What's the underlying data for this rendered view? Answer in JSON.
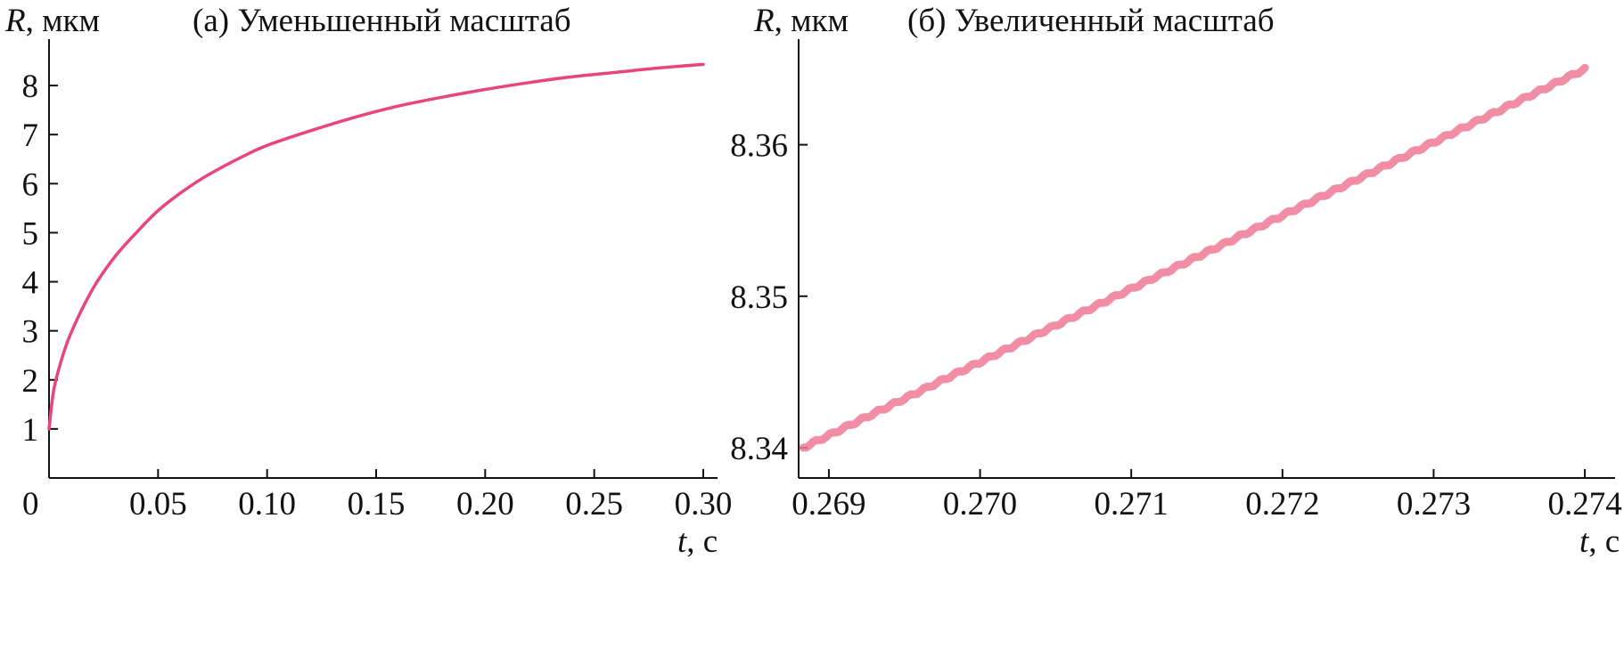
{
  "chart_data": [
    {
      "type": "line",
      "title": "(а) Уменьшенный масштаб",
      "ylabel_symbol": "R",
      "ylabel_unit": ", мкм",
      "xlabel_symbol": "t",
      "xlabel_unit": ", с",
      "xlim": [
        0,
        0.3
      ],
      "ylim": [
        0,
        8.8
      ],
      "x_ticks": [
        0.05,
        0.1,
        0.15,
        0.2,
        0.25,
        0.3
      ],
      "x_tick_labels": [
        "0.05",
        "0.10",
        "0.15",
        "0.20",
        "0.25",
        "0.30"
      ],
      "y_ticks": [
        1,
        2,
        3,
        4,
        5,
        6,
        7,
        8
      ],
      "y_tick_labels": [
        "1",
        "2",
        "3",
        "4",
        "5",
        "6",
        "7",
        "8"
      ],
      "origin_label": "0",
      "grid": false,
      "color": "#e8457a",
      "series": [
        {
          "x": [
            0,
            0.002,
            0.005,
            0.01,
            0.02,
            0.03,
            0.04,
            0.05,
            0.06,
            0.07,
            0.08,
            0.09,
            0.1,
            0.12,
            0.14,
            0.16,
            0.18,
            0.2,
            0.22,
            0.24,
            0.26,
            0.28,
            0.3
          ],
          "y": [
            1.0,
            1.75,
            2.3,
            2.95,
            3.85,
            4.5,
            5.0,
            5.45,
            5.8,
            6.1,
            6.35,
            6.58,
            6.78,
            7.08,
            7.35,
            7.58,
            7.76,
            7.92,
            8.06,
            8.18,
            8.27,
            8.36,
            8.43
          ]
        }
      ]
    },
    {
      "type": "line",
      "title": "(б) Увеличенный масштаб",
      "ylabel_symbol": "R",
      "ylabel_unit": ", мкм",
      "xlabel_symbol": "t",
      "xlabel_unit": ", с",
      "xlim": [
        0.2688,
        0.2742
      ],
      "ylim": [
        8.338,
        8.3665
      ],
      "x_ticks": [
        0.269,
        0.27,
        0.271,
        0.272,
        0.273,
        0.274
      ],
      "x_tick_labels": [
        "0.269",
        "0.270",
        "0.271",
        "0.272",
        "0.273",
        "0.274"
      ],
      "y_ticks": [
        8.34,
        8.35,
        8.36
      ],
      "y_tick_labels": [
        "8.34",
        "8.35",
        "8.36"
      ],
      "grid": false,
      "color": "#ef7a96",
      "series": [
        {
          "x": [
            0.26883,
            0.274
          ],
          "y": [
            8.34,
            8.365
          ]
        }
      ]
    }
  ]
}
